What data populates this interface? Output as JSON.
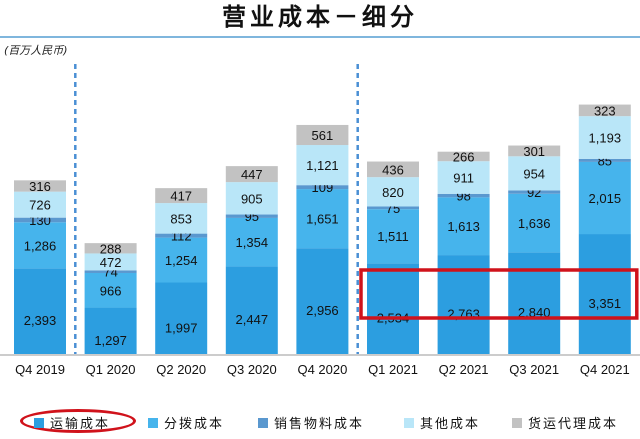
{
  "title": "营业成本－细分",
  "unit_label": "(百万人民币)",
  "colors": {
    "transport": "#2c9ee0",
    "subcontract": "#46b4ec",
    "sales_material": "#5a98cf",
    "other": "#b9e6f8",
    "freight_agency": "#c2c2c2",
    "highlight": "#d0121b",
    "divider": "#4a8fd4"
  },
  "chart_data": {
    "type": "bar",
    "stacked": true,
    "categories": [
      "Q4 2019",
      "Q1 2020",
      "Q2 2020",
      "Q3 2020",
      "Q4 2020",
      "Q1 2021",
      "Q2 2021",
      "Q3 2021",
      "Q4 2021"
    ],
    "series": [
      {
        "name": "运输成本",
        "values": [
          2393,
          1297,
          1997,
          2447,
          2956,
          2534,
          2763,
          2840,
          3351
        ]
      },
      {
        "name": "分拨成本",
        "values": [
          1286,
          966,
          1254,
          1354,
          1651,
          1511,
          1613,
          1636,
          2015
        ]
      },
      {
        "name": "销售物料成本",
        "values": [
          130,
          74,
          112,
          95,
          109,
          75,
          98,
          92,
          85
        ]
      },
      {
        "name": "其他成本",
        "values": [
          726,
          472,
          853,
          905,
          1121,
          820,
          911,
          954,
          1193
        ]
      },
      {
        "name": "货运代理成本",
        "values": [
          316,
          288,
          417,
          447,
          561,
          436,
          266,
          301,
          323
        ]
      }
    ],
    "dividers_after": [
      "Q4 2019",
      "Q4 2020"
    ],
    "highlight": {
      "series": "运输成本",
      "categories": [
        "Q1 2021",
        "Q2 2021",
        "Q3 2021",
        "Q4 2021"
      ]
    },
    "legend_position": "bottom"
  }
}
